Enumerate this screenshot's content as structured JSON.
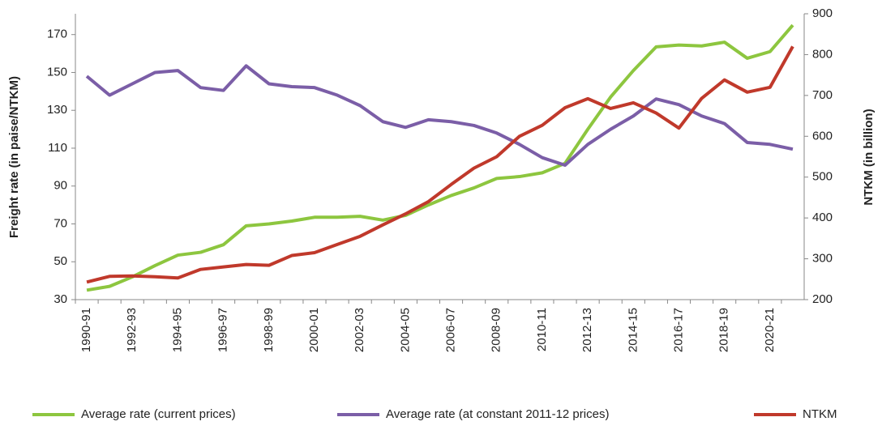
{
  "chart_data": {
    "type": "line",
    "y_label": "Freight rate (in paise/NTKM)",
    "y2_label": "NTKM (in billion)",
    "categories": [
      "1990-91",
      null,
      "1992-93",
      null,
      "1994-95",
      null,
      "1996-97",
      null,
      "1998-99",
      null,
      "2000-01",
      null,
      "2002-03",
      null,
      "2004-05",
      null,
      "2006-07",
      null,
      "2008-09",
      null,
      "2010-11",
      null,
      "2012-13",
      null,
      "2014-15",
      null,
      "2016-17",
      null,
      "2018-19",
      null,
      "2020-21",
      null
    ],
    "series": [
      {
        "name": "Average rate (current prices)",
        "color": "#8dc63f",
        "values": [
          35,
          37,
          42,
          48,
          53.5,
          55,
          59,
          69,
          70,
          71.5,
          73.5,
          73.5,
          74,
          72,
          74.5,
          80,
          85,
          89,
          94,
          95,
          97,
          102,
          120,
          137,
          151,
          163.5,
          164.5,
          164,
          166,
          157.5,
          161,
          175
        ]
      },
      {
        "name": "Average rate (at constant 2011-12 prices)",
        "color": "#7b5ea7",
        "values": [
          148,
          138,
          144,
          150,
          151,
          142,
          140.5,
          153.5,
          144,
          142.5,
          142,
          138,
          132.5,
          124,
          121,
          125,
          124,
          122,
          118,
          112,
          105,
          101,
          112,
          120,
          127,
          136,
          133,
          127,
          123,
          113,
          112,
          109.5
        ]
      },
      {
        "name": "NTKM",
        "color": "#c0392b",
        "axis": "y2",
        "values": [
          243,
          257,
          258,
          256,
          253,
          274,
          280,
          286,
          284,
          308,
          315,
          335,
          355,
          383,
          410,
          440,
          482,
          522,
          550,
          600,
          627,
          670,
          692,
          668,
          682,
          657,
          620,
          693,
          738,
          708,
          720,
          820
        ]
      }
    ],
    "ylim": [
      30,
      181
    ],
    "yticks": [
      30,
      50,
      70,
      90,
      110,
      130,
      150,
      170
    ],
    "y2lim": [
      200,
      900
    ],
    "y2ticks": [
      200,
      300,
      400,
      500,
      600,
      700,
      800,
      900
    ]
  }
}
